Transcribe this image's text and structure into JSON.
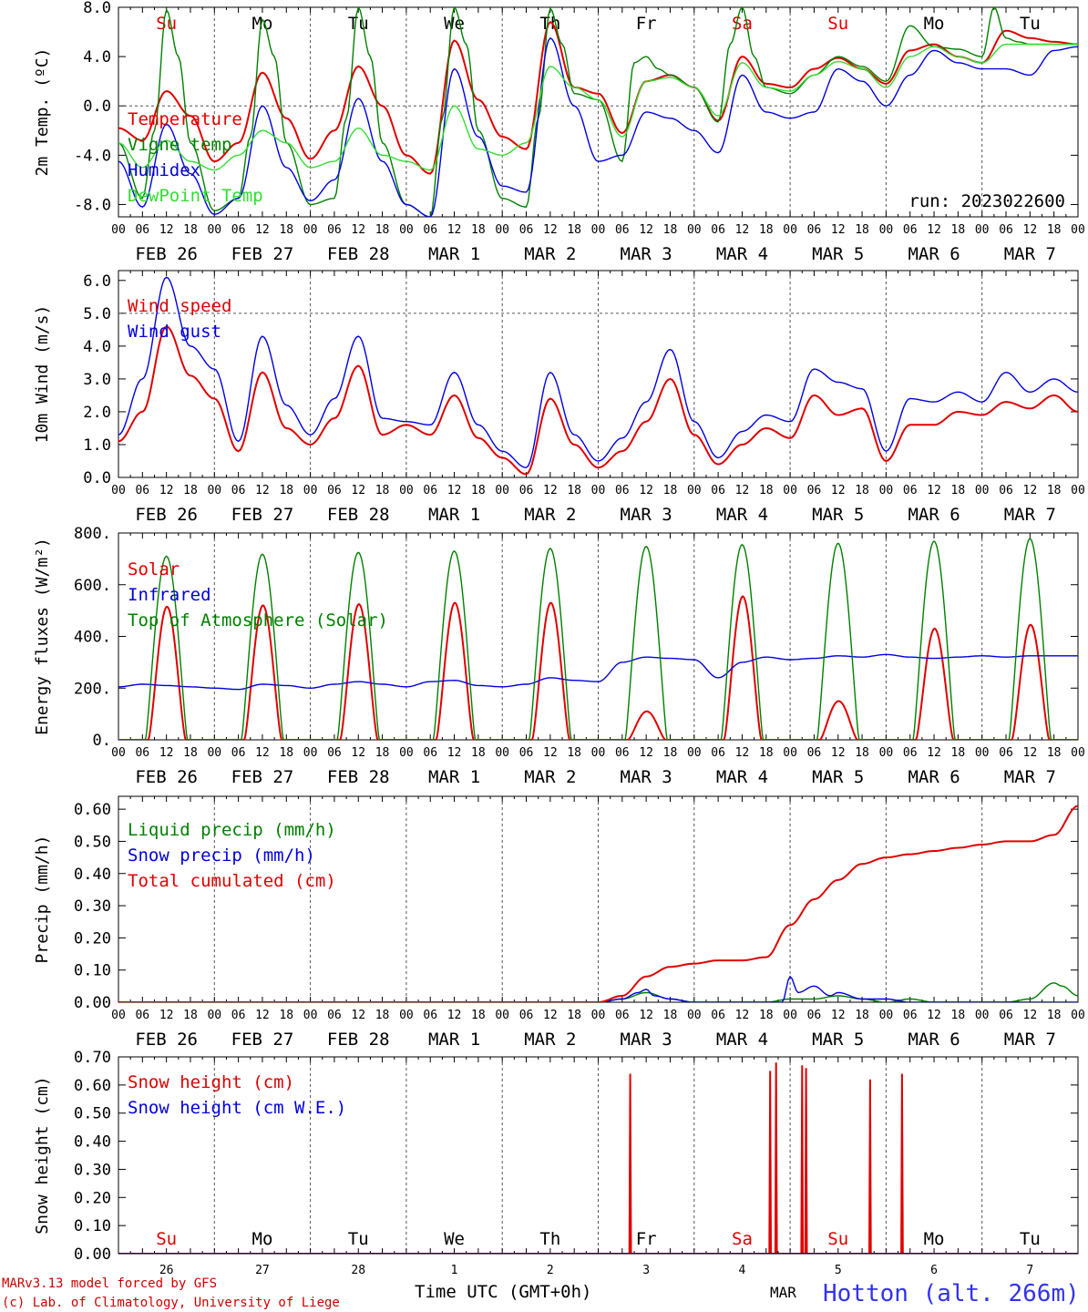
{
  "footer": {
    "model": "MARv3.13 model forced by GFS",
    "lab": "(c) Lab. of Climatology, University of Liege",
    "time_axis": "Time UTC (GMT+0h)",
    "month": "MAR",
    "station": "Hotton (alt. 266m)"
  },
  "colors": {
    "red": "#e00000",
    "blue": "#0000e0",
    "green": "#008000",
    "lightgreen": "#33dd33",
    "grid": "#555555"
  },
  "hour_ticks": [
    "00",
    "06",
    "12",
    "18"
  ],
  "final_hour_tick": "00",
  "date_labels": [
    "FEB 26",
    "FEB 27",
    "FEB 28",
    "MAR  1",
    "MAR  2",
    "MAR  3",
    "MAR  4",
    "MAR  5",
    "MAR  6",
    "MAR  7"
  ],
  "day_numbers": [
    "26",
    "27",
    "28",
    "1",
    "2",
    "3",
    "4",
    "5",
    "6",
    "7"
  ],
  "day_names": [
    {
      "text": "Su",
      "color": "#e00000"
    },
    {
      "text": "Mo",
      "color": "#000000"
    },
    {
      "text": "Tu",
      "color": "#000000"
    },
    {
      "text": "We",
      "color": "#000000"
    },
    {
      "text": "Th",
      "color": "#000000"
    },
    {
      "text": "Fr",
      "color": "#000000"
    },
    {
      "text": "Sa",
      "color": "#e00000"
    },
    {
      "text": "Su",
      "color": "#e00000"
    },
    {
      "text": "Mo",
      "color": "#000000"
    },
    {
      "text": "Tu",
      "color": "#000000"
    }
  ],
  "chart_data": [
    {
      "type": "line",
      "ylabel": "2m Temp. (ºC)",
      "ylim": [
        -9,
        8
      ],
      "yticks": [
        "-8.0",
        "-4.0",
        "0.0",
        "4.0",
        "8.0"
      ],
      "ytick_values": [
        -8,
        -4,
        0,
        4,
        8
      ],
      "xlim_hours": [
        0,
        240
      ],
      "annotation": "run: 2023022600",
      "series": [
        {
          "name": "Temperature",
          "color": "red",
          "x": [
            0,
            6,
            12,
            18,
            24,
            30,
            36,
            42,
            48,
            54,
            60,
            66,
            72,
            78,
            84,
            90,
            96,
            102,
            108,
            114,
            120,
            126,
            132,
            138,
            144,
            150,
            156,
            162,
            168,
            174,
            180,
            186,
            192,
            198,
            204,
            210,
            216,
            222,
            228,
            234,
            240
          ],
          "values": [
            -1.8,
            -2.8,
            1.2,
            -0.8,
            -4.5,
            -3.0,
            2.7,
            -1.0,
            -4.3,
            -2.0,
            3.2,
            0.0,
            -4.0,
            -5.5,
            5.3,
            0.5,
            -2.5,
            -3.5,
            6.8,
            1.5,
            1.0,
            -2.2,
            2.0,
            2.5,
            1.5,
            -1.2,
            4.0,
            1.8,
            1.5,
            3.0,
            3.9,
            3.0,
            1.8,
            4.5,
            5.0,
            4.0,
            3.5,
            6.1,
            5.5,
            5.2,
            5.0
          ]
        },
        {
          "name": "Vigne temp",
          "color": "green",
          "x": [
            0,
            6,
            9,
            12,
            15,
            18,
            24,
            30,
            33,
            36,
            39,
            42,
            48,
            54,
            57,
            60,
            63,
            66,
            72,
            78,
            81,
            84,
            87,
            90,
            96,
            102,
            105,
            108,
            111,
            114,
            120,
            126,
            129,
            132,
            135,
            138,
            144,
            150,
            153,
            156,
            159,
            162,
            168,
            174,
            180,
            186,
            192,
            198,
            204,
            210,
            216,
            219,
            222,
            225,
            228,
            234,
            240
          ],
          "values": [
            -3.0,
            -7.5,
            -2.0,
            7.8,
            4.0,
            -3.0,
            -8.5,
            -7.5,
            -2.5,
            7.0,
            4.0,
            -3.0,
            -8.0,
            -7.5,
            -1.0,
            8.0,
            4.0,
            -3.0,
            -8.0,
            -9.0,
            -1.0,
            8.0,
            5.0,
            -2.0,
            -7.5,
            -8.2,
            -1.0,
            7.9,
            5.0,
            1.0,
            0.5,
            -4.5,
            3.5,
            4.0,
            3.0,
            2.5,
            1.5,
            -1.3,
            5.0,
            8.0,
            4.0,
            1.5,
            1.0,
            2.5,
            4.0,
            3.2,
            2.0,
            6.5,
            4.8,
            4.6,
            4.0,
            8.0,
            5.5,
            5.2,
            5.0,
            5.0,
            5.0
          ]
        },
        {
          "name": "Humidex",
          "color": "blue",
          "x": [
            0,
            6,
            12,
            18,
            24,
            30,
            36,
            42,
            48,
            54,
            60,
            66,
            72,
            78,
            84,
            90,
            96,
            102,
            108,
            114,
            120,
            126,
            132,
            138,
            144,
            150,
            156,
            162,
            168,
            174,
            180,
            186,
            192,
            198,
            204,
            210,
            216,
            222,
            228,
            234,
            240
          ],
          "values": [
            -4.5,
            -8.2,
            -1.5,
            -5.5,
            -8.8,
            -7.5,
            0.0,
            -5.0,
            -7.7,
            -6.0,
            0.6,
            -4.5,
            -8.0,
            -9.0,
            3.0,
            -2.5,
            -6.5,
            -7.0,
            5.5,
            0.0,
            -4.5,
            -4.0,
            -0.5,
            -1.0,
            -2.0,
            -3.8,
            2.5,
            -0.5,
            -1.0,
            -0.5,
            3.0,
            2.0,
            0.0,
            2.5,
            4.5,
            3.5,
            3.0,
            3.0,
            2.5,
            4.5,
            4.8
          ]
        },
        {
          "name": "DewPoint Temp",
          "color": "lightgreen",
          "x": [
            0,
            6,
            12,
            18,
            24,
            30,
            36,
            42,
            48,
            54,
            60,
            66,
            72,
            78,
            84,
            90,
            96,
            102,
            108,
            114,
            120,
            126,
            132,
            138,
            144,
            150,
            156,
            162,
            168,
            174,
            180,
            186,
            192,
            198,
            204,
            210,
            216,
            222,
            228,
            234,
            240
          ],
          "values": [
            -3.0,
            -5.0,
            -2.8,
            -4.5,
            -5.2,
            -4.0,
            -2.0,
            -3.0,
            -5.0,
            -4.5,
            -1.8,
            -4.0,
            -4.5,
            -5.2,
            0.0,
            -3.5,
            -4.0,
            -3.0,
            3.2,
            1.5,
            0.5,
            -2.5,
            2.0,
            2.3,
            1.5,
            -0.8,
            3.5,
            1.5,
            1.2,
            2.5,
            3.6,
            3.0,
            1.5,
            4.0,
            4.8,
            4.0,
            3.5,
            5.0,
            5.0,
            5.0,
            5.0
          ]
        }
      ]
    },
    {
      "type": "line",
      "ylabel": "10m Wind (m/s)",
      "ylim": [
        0,
        6.3
      ],
      "yticks": [
        "0.0",
        "1.0",
        "2.0",
        "3.0",
        "4.0",
        "5.0",
        "6.0"
      ],
      "ytick_values": [
        0,
        1,
        2,
        3,
        4,
        5,
        6
      ],
      "ref_line": 5.0,
      "xlim_hours": [
        0,
        240
      ],
      "series": [
        {
          "name": "Wind speed",
          "color": "red",
          "x": [
            0,
            6,
            12,
            18,
            24,
            30,
            36,
            42,
            48,
            54,
            60,
            66,
            72,
            78,
            84,
            90,
            96,
            102,
            108,
            114,
            120,
            126,
            132,
            138,
            144,
            150,
            156,
            162,
            168,
            174,
            180,
            186,
            192,
            198,
            204,
            210,
            216,
            222,
            228,
            234,
            240
          ],
          "values": [
            1.1,
            2.0,
            4.6,
            3.1,
            2.4,
            0.8,
            3.2,
            1.5,
            1.0,
            1.8,
            3.4,
            1.3,
            1.6,
            1.3,
            2.5,
            1.2,
            0.6,
            0.1,
            2.4,
            1.0,
            0.3,
            0.8,
            1.7,
            3.0,
            1.3,
            0.4,
            1.0,
            1.5,
            1.2,
            2.5,
            1.9,
            2.1,
            0.5,
            1.6,
            1.6,
            2.0,
            1.9,
            2.3,
            2.1,
            2.5,
            2.0
          ]
        },
        {
          "name": "Wind gust",
          "color": "blue",
          "x": [
            0,
            6,
            12,
            18,
            24,
            30,
            36,
            42,
            48,
            54,
            60,
            66,
            72,
            78,
            84,
            90,
            96,
            102,
            108,
            114,
            120,
            126,
            132,
            138,
            144,
            150,
            156,
            162,
            168,
            174,
            180,
            186,
            192,
            198,
            204,
            210,
            216,
            222,
            228,
            234,
            240
          ],
          "values": [
            1.3,
            3.0,
            6.1,
            4.0,
            3.3,
            1.1,
            4.3,
            2.2,
            1.3,
            2.4,
            4.3,
            1.8,
            1.7,
            1.6,
            3.2,
            1.6,
            0.8,
            0.3,
            3.2,
            1.3,
            0.5,
            1.2,
            2.3,
            3.9,
            1.7,
            0.6,
            1.4,
            1.9,
            1.7,
            3.3,
            2.9,
            2.7,
            0.8,
            2.4,
            2.3,
            2.6,
            2.3,
            3.2,
            2.6,
            3.0,
            2.6
          ]
        }
      ]
    },
    {
      "type": "line",
      "ylabel": "Energy fluxes (W/m²)",
      "ylim": [
        0,
        800
      ],
      "yticks": [
        "0.",
        "200.",
        "400.",
        "600.",
        "800."
      ],
      "ytick_values": [
        0,
        200,
        400,
        600,
        800
      ],
      "xlim_hours": [
        0,
        240
      ],
      "series": [
        {
          "name": "Solar",
          "color": "red",
          "peaks": [
            515,
            520,
            525,
            530,
            530,
            110,
            555,
            150,
            430,
            445
          ]
        },
        {
          "name": "Infrared",
          "color": "blue",
          "x": [
            0,
            6,
            12,
            18,
            24,
            30,
            36,
            42,
            48,
            54,
            60,
            66,
            72,
            78,
            84,
            90,
            96,
            102,
            108,
            114,
            120,
            126,
            132,
            138,
            144,
            150,
            156,
            162,
            168,
            174,
            180,
            186,
            192,
            198,
            204,
            210,
            216,
            222,
            228,
            234,
            240
          ],
          "values": [
            205,
            215,
            210,
            205,
            200,
            195,
            215,
            210,
            200,
            215,
            225,
            215,
            205,
            225,
            230,
            210,
            205,
            215,
            240,
            230,
            225,
            300,
            320,
            315,
            310,
            240,
            300,
            320,
            310,
            315,
            325,
            320,
            330,
            320,
            315,
            320,
            325,
            320,
            325,
            325,
            325
          ]
        },
        {
          "name": "Top of Atmosphere (Solar)",
          "color": "green",
          "peaks": [
            710,
            718,
            725,
            730,
            740,
            748,
            755,
            760,
            768,
            778
          ]
        }
      ]
    },
    {
      "type": "line",
      "ylabel": "Precip (mm/h)",
      "ylim": [
        0,
        0.64
      ],
      "yticks": [
        "0.00",
        "0.10",
        "0.20",
        "0.30",
        "0.40",
        "0.50",
        "0.60"
      ],
      "ytick_values": [
        0,
        0.1,
        0.2,
        0.3,
        0.4,
        0.5,
        0.6
      ],
      "xlim_hours": [
        0,
        240
      ],
      "series": [
        {
          "name": "Liquid precip (mm/h)",
          "color": "green",
          "x": [
            0,
            120,
            126,
            132,
            138,
            144,
            150,
            162,
            168,
            174,
            180,
            186,
            192,
            198,
            204,
            210,
            216,
            222,
            228,
            234,
            236,
            240
          ],
          "values": [
            0,
            0,
            0.01,
            0.03,
            0.01,
            0.0,
            0.0,
            0.0,
            0.01,
            0.01,
            0.02,
            0.01,
            0.0,
            0.01,
            0.0,
            0.0,
            0.0,
            0.0,
            0.01,
            0.06,
            0.05,
            0.02
          ]
        },
        {
          "name": "Snow precip (mm/h)",
          "color": "blue",
          "x": [
            0,
            120,
            126,
            130,
            132,
            134,
            138,
            144,
            150,
            156,
            162,
            166,
            168,
            170,
            174,
            178,
            180,
            186,
            192,
            198,
            240
          ],
          "values": [
            0,
            0,
            0.01,
            0.03,
            0.04,
            0.02,
            0.01,
            0.0,
            0.0,
            0.0,
            0.0,
            0.0,
            0.08,
            0.03,
            0.05,
            0.02,
            0.03,
            0.01,
            0.01,
            0.0,
            0.0
          ]
        },
        {
          "name": "Total cumulated (cm)",
          "color": "red",
          "x": [
            0,
            120,
            126,
            132,
            138,
            144,
            150,
            156,
            162,
            168,
            174,
            180,
            186,
            192,
            198,
            204,
            210,
            216,
            222,
            228,
            234,
            240
          ],
          "values": [
            0,
            0,
            0.02,
            0.08,
            0.11,
            0.12,
            0.13,
            0.13,
            0.14,
            0.24,
            0.32,
            0.38,
            0.43,
            0.45,
            0.46,
            0.47,
            0.48,
            0.49,
            0.5,
            0.5,
            0.52,
            0.61
          ]
        }
      ]
    },
    {
      "type": "line",
      "ylabel": "Snow height (cm)",
      "ylim": [
        0,
        0.7
      ],
      "yticks": [
        "0.00",
        "0.10",
        "0.20",
        "0.30",
        "0.40",
        "0.50",
        "0.60",
        "0.70"
      ],
      "ytick_values": [
        0,
        0.1,
        0.2,
        0.3,
        0.4,
        0.5,
        0.6,
        0.7
      ],
      "xlim_hours": [
        0,
        240
      ],
      "series": [
        {
          "name": "Snow height (cm)",
          "color": "red",
          "spikes": [
            [
              128,
              0.64
            ],
            [
              163,
              0.65
            ],
            [
              164.5,
              0.68
            ],
            [
              171,
              0.67
            ],
            [
              172,
              0.66
            ],
            [
              188,
              0.62
            ],
            [
              196,
              0.64
            ]
          ]
        },
        {
          "name": "Snow height (cm W.E.)",
          "color": "blue",
          "spikes": []
        }
      ]
    }
  ]
}
